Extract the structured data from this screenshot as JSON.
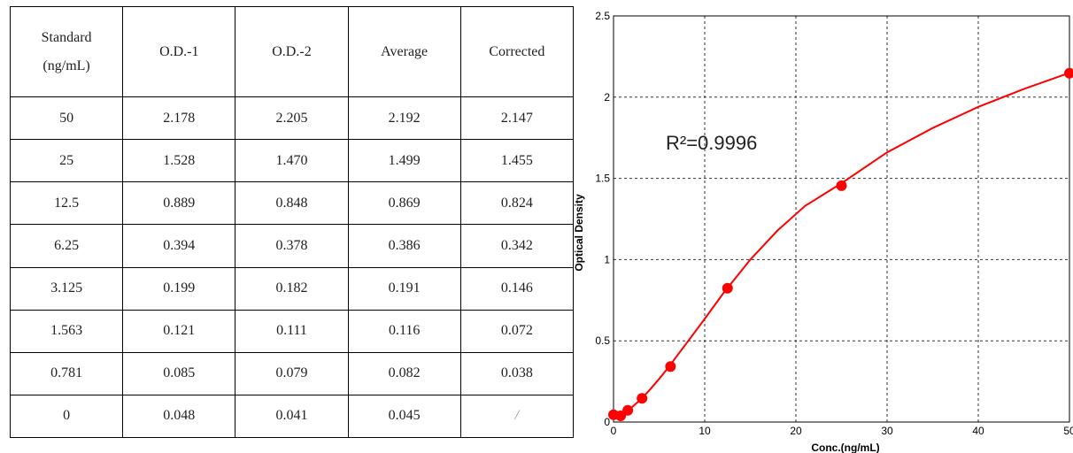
{
  "table": {
    "headers": [
      "Standard\n(ng/mL)",
      "O.D.-1",
      "O.D.-2",
      "Average",
      "Corrected"
    ],
    "rows": [
      [
        "50",
        "2.178",
        "2.205",
        "2.192",
        "2.147"
      ],
      [
        "25",
        "1.528",
        "1.470",
        "1.499",
        "1.455"
      ],
      [
        "12.5",
        "0.889",
        "0.848",
        "0.869",
        "0.824"
      ],
      [
        "6.25",
        "0.394",
        "0.378",
        "0.386",
        "0.342"
      ],
      [
        "3.125",
        "0.199",
        "0.182",
        "0.191",
        "0.146"
      ],
      [
        "1.563",
        "0.121",
        "0.111",
        "0.116",
        "0.072"
      ],
      [
        "0.781",
        "0.085",
        "0.079",
        "0.082",
        "0.038"
      ],
      [
        "0",
        "0.048",
        "0.041",
        "0.045",
        "/"
      ]
    ]
  },
  "chart_data": {
    "type": "scatter",
    "xlabel": "Conc.(ng/mL)",
    "ylabel": "Optical Density",
    "xlim": [
      0,
      50
    ],
    "ylim": [
      0,
      2.5
    ],
    "x_ticks": [
      "0",
      "10",
      "20",
      "30",
      "40",
      "50"
    ],
    "y_ticks": [
      "0",
      "0.5",
      "1",
      "1.5",
      "2",
      "2.5"
    ],
    "grid": true,
    "annotation": "R²=0.9996",
    "point_color": "#ff0000",
    "curve_color": "#ff0000",
    "points": [
      {
        "x": 0,
        "y": 0.045
      },
      {
        "x": 0.781,
        "y": 0.038
      },
      {
        "x": 1.563,
        "y": 0.072
      },
      {
        "x": 3.125,
        "y": 0.146
      },
      {
        "x": 6.25,
        "y": 0.342
      },
      {
        "x": 12.5,
        "y": 0.824
      },
      {
        "x": 25,
        "y": 1.455
      },
      {
        "x": 50,
        "y": 2.147
      }
    ],
    "fit_curve": {
      "x": [
        0,
        1,
        2,
        3,
        4,
        5,
        6,
        7,
        8,
        10,
        12,
        15,
        18,
        21,
        25,
        30,
        35,
        40,
        45,
        50
      ],
      "y": [
        0.03,
        0.052,
        0.09,
        0.14,
        0.2,
        0.265,
        0.335,
        0.41,
        0.485,
        0.635,
        0.79,
        1.0,
        1.18,
        1.33,
        1.47,
        1.66,
        1.81,
        1.94,
        2.05,
        2.15
      ]
    }
  }
}
